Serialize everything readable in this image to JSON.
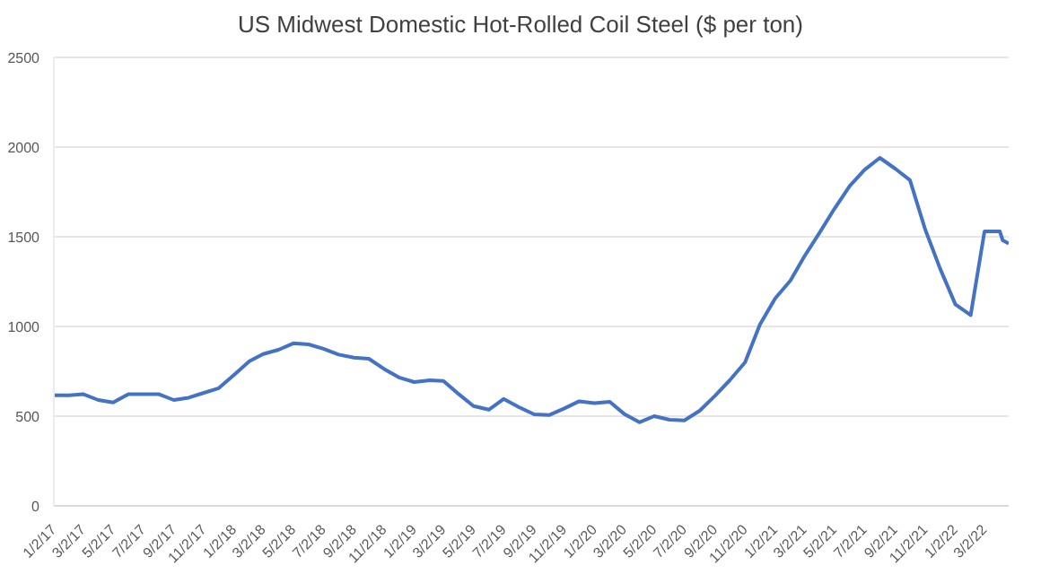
{
  "chart_data": {
    "type": "line",
    "title": "US Midwest Domestic Hot-Rolled Coil Steel ($ per ton)",
    "x": [
      "2017-01-02",
      "2017-02-02",
      "2017-03-02",
      "2017-04-02",
      "2017-05-02",
      "2017-06-02",
      "2017-07-02",
      "2017-08-02",
      "2017-09-02",
      "2017-10-02",
      "2017-11-02",
      "2017-12-02",
      "2018-01-02",
      "2018-02-02",
      "2018-03-02",
      "2018-04-02",
      "2018-05-02",
      "2018-06-02",
      "2018-07-02",
      "2018-08-02",
      "2018-09-02",
      "2018-10-02",
      "2018-11-02",
      "2018-12-02",
      "2019-01-02",
      "2019-02-02",
      "2019-03-02",
      "2019-04-02",
      "2019-05-02",
      "2019-06-02",
      "2019-07-02",
      "2019-08-02",
      "2019-09-02",
      "2019-10-02",
      "2019-11-02",
      "2019-12-02",
      "2020-01-02",
      "2020-02-02",
      "2020-03-02",
      "2020-04-02",
      "2020-05-02",
      "2020-06-02",
      "2020-07-02",
      "2020-08-02",
      "2020-09-02",
      "2020-10-02",
      "2020-11-02",
      "2020-12-02",
      "2021-01-02",
      "2021-02-02",
      "2021-03-02",
      "2021-04-02",
      "2021-05-02",
      "2021-06-02",
      "2021-07-02",
      "2021-08-02",
      "2021-09-02",
      "2021-10-02",
      "2021-11-02",
      "2021-12-02",
      "2022-01-02",
      "2022-02-02",
      "2022-03-02",
      "2022-04-02",
      "2022-04-08",
      "2022-04-20"
    ],
    "series": [
      {
        "color": "#4472c4",
        "values": [
          616,
          616,
          623,
          590,
          576,
          623,
          623,
          623,
          590,
          603,
          630,
          656,
          730,
          806,
          846,
          870,
          906,
          900,
          876,
          843,
          826,
          820,
          763,
          716,
          690,
          700,
          696,
          623,
          556,
          536,
          596,
          550,
          510,
          506,
          543,
          583,
          573,
          580,
          513,
          466,
          500,
          480,
          476,
          530,
          613,
          700,
          800,
          1010,
          1156,
          1256,
          1390,
          1523,
          1656,
          1783,
          1873,
          1940,
          1880,
          1816,
          1540,
          1323,
          1123,
          1063,
          1530,
          1530,
          1480,
          1463
        ]
      }
    ],
    "xlim": [
      "2017-01-02",
      "2022-04-20"
    ],
    "xticks": [
      {
        "value": "2017-01-02",
        "label": "1/2/17"
      },
      {
        "value": "2017-03-02",
        "label": "3/2/17"
      },
      {
        "value": "2017-05-02",
        "label": "5/2/17"
      },
      {
        "value": "2017-07-02",
        "label": "7/2/17"
      },
      {
        "value": "2017-09-02",
        "label": "9/2/17"
      },
      {
        "value": "2017-11-02",
        "label": "11/2/17"
      },
      {
        "value": "2018-01-02",
        "label": "1/2/18"
      },
      {
        "value": "2018-03-02",
        "label": "3/2/18"
      },
      {
        "value": "2018-05-02",
        "label": "5/2/18"
      },
      {
        "value": "2018-07-02",
        "label": "7/2/18"
      },
      {
        "value": "2018-09-02",
        "label": "9/2/18"
      },
      {
        "value": "2018-11-02",
        "label": "11/2/18"
      },
      {
        "value": "2019-01-02",
        "label": "1/2/19"
      },
      {
        "value": "2019-03-02",
        "label": "3/2/19"
      },
      {
        "value": "2019-05-02",
        "label": "5/2/19"
      },
      {
        "value": "2019-07-02",
        "label": "7/2/19"
      },
      {
        "value": "2019-09-02",
        "label": "9/2/19"
      },
      {
        "value": "2019-11-02",
        "label": "11/2/19"
      },
      {
        "value": "2020-01-02",
        "label": "1/2/20"
      },
      {
        "value": "2020-03-02",
        "label": "3/2/20"
      },
      {
        "value": "2020-05-02",
        "label": "5/2/20"
      },
      {
        "value": "2020-07-02",
        "label": "7/2/20"
      },
      {
        "value": "2020-09-02",
        "label": "9/2/20"
      },
      {
        "value": "2020-11-02",
        "label": "11/2/20"
      },
      {
        "value": "2021-01-02",
        "label": "1/2/21"
      },
      {
        "value": "2021-03-02",
        "label": "3/2/21"
      },
      {
        "value": "2021-05-02",
        "label": "5/2/21"
      },
      {
        "value": "2021-07-02",
        "label": "7/2/21"
      },
      {
        "value": "2021-09-02",
        "label": "9/2/21"
      },
      {
        "value": "2021-11-02",
        "label": "11/2/21"
      },
      {
        "value": "2022-01-02",
        "label": "1/2/22"
      },
      {
        "value": "2022-03-02",
        "label": "3/2/22"
      }
    ],
    "ylim": [
      0,
      2500
    ],
    "yticks": [
      0,
      500,
      1000,
      1500,
      2000,
      2500
    ],
    "grid": "y",
    "marker": "none",
    "line_style": "solid"
  }
}
